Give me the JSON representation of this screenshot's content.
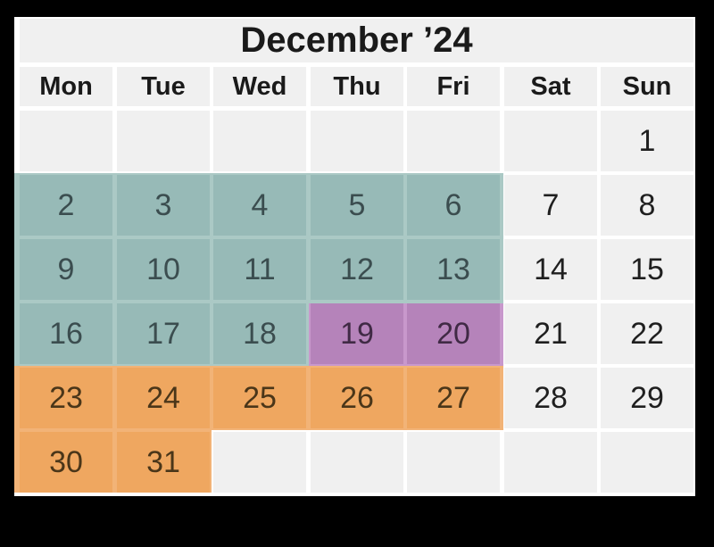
{
  "title": "December ’24",
  "day_headers": [
    "Mon",
    "Tue",
    "Wed",
    "Thu",
    "Fri",
    "Sat",
    "Sun"
  ],
  "grid": [
    [
      "",
      "",
      "",
      "",
      "",
      "",
      "1"
    ],
    [
      "2",
      "3",
      "4",
      "5",
      "6",
      "7",
      "8"
    ],
    [
      "9",
      "10",
      "11",
      "12",
      "13",
      "14",
      "15"
    ],
    [
      "16",
      "17",
      "18",
      "19",
      "20",
      "21",
      "22"
    ],
    [
      "23",
      "24",
      "25",
      "26",
      "27",
      "28",
      "29"
    ],
    [
      "30",
      "31",
      "",
      "",
      "",
      "",
      ""
    ]
  ],
  "highlights": {
    "teal_days": [
      "2",
      "3",
      "4",
      "5",
      "6",
      "9",
      "10",
      "11",
      "12",
      "13",
      "16",
      "17",
      "18"
    ],
    "purple_days": [
      "19",
      "20"
    ],
    "orange_days": [
      "23",
      "24",
      "25",
      "26",
      "27",
      "30",
      "31"
    ]
  },
  "colors": {
    "canvas-bg": "#000000",
    "calendar-bg": "#ffffff",
    "cell-bg": "#f0f0f0",
    "title-text": "#1a1a1a",
    "header-text": "#1a1a1a",
    "number-text": "#1f1f1f",
    "teal-cell": "#97bab7",
    "teal-gap": "#abc9c5",
    "teal-text": "#3b4d4f",
    "purple-cell": "#b583ba",
    "purple-gap": "#c898cc",
    "purple-text": "#402a45",
    "orange-cell": "#efa760",
    "orange-gap": "#f2b377",
    "orange-text": "#4a3619"
  }
}
